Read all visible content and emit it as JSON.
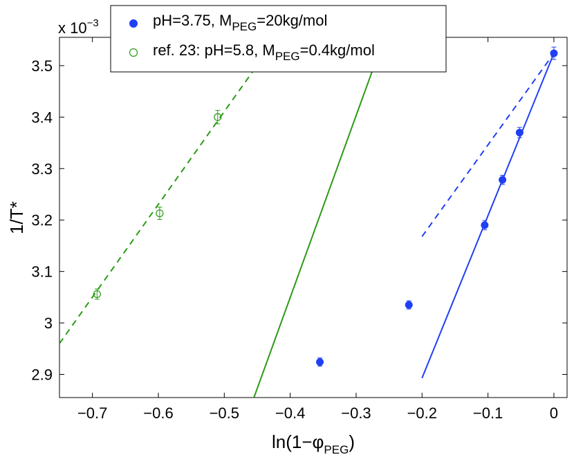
{
  "chart_data": {
    "type": "scatter",
    "title": "",
    "xlabel": {
      "main": "ln(1−φ",
      "sub": "PEG",
      "tail": ")"
    },
    "ylabel": "1/T*",
    "y_multiplier": {
      "base": "x 10",
      "exp": "−3"
    },
    "xlim": [
      -0.75,
      0.02
    ],
    "ylim": [
      2.855,
      3.555
    ],
    "x_ticks": [
      -0.7,
      -0.6,
      -0.5,
      -0.4,
      -0.3,
      -0.2,
      -0.1,
      0
    ],
    "x_tick_labels": [
      "−0.7",
      "−0.6",
      "−0.5",
      "−0.4",
      "−0.3",
      "−0.2",
      "−0.1",
      "0"
    ],
    "y_ticks": [
      2.9,
      3.0,
      3.1,
      3.2,
      3.3,
      3.4,
      3.5
    ],
    "y_tick_labels": [
      "2.9",
      "3",
      "3.1",
      "3.2",
      "3.3",
      "3.4",
      "3.5"
    ],
    "grid": false,
    "legend_position": "top-center",
    "colors": {
      "blue": "#1f3ff5",
      "green": "#2a9a14"
    },
    "series": [
      {
        "name": {
          "pre": "pH=3.75, M",
          "sub": "PEG",
          "post": "=20kg/mol"
        },
        "marker": "filled-circle",
        "color": "#1f3ff5",
        "x": [
          -0.355,
          -0.22,
          -0.105,
          -0.078,
          -0.052,
          0.0
        ],
        "y": [
          2.924,
          3.035,
          3.19,
          3.278,
          3.37,
          3.524
        ],
        "err": [
          0.008,
          0.008,
          0.009,
          0.009,
          0.01,
          0.012
        ]
      },
      {
        "name": {
          "pre": "ref. 23: pH=5.8, M",
          "sub": "PEG",
          "post": "=0.4kg/mol"
        },
        "marker": "open-circle",
        "color": "#2a9a14",
        "x": [
          -0.693,
          -0.598,
          -0.51
        ],
        "y": [
          3.056,
          3.213,
          3.4
        ],
        "err": [
          0.01,
          0.012,
          0.013
        ]
      }
    ],
    "lines": [
      {
        "name": "blue-solid-fit",
        "color": "#1f3ff5",
        "style": "solid",
        "x": [
          -0.2,
          0.0
        ],
        "y": [
          2.893,
          3.524
        ]
      },
      {
        "name": "blue-dashed-fit",
        "color": "#1f3ff5",
        "style": "dashed",
        "x": [
          -0.2,
          0.0
        ],
        "y": [
          3.168,
          3.524
        ]
      },
      {
        "name": "green-solid-fit",
        "color": "#2a9a14",
        "style": "solid",
        "x": [
          -0.455,
          -0.257
        ],
        "y": [
          2.855,
          3.555
        ]
      },
      {
        "name": "green-dashed-fit",
        "color": "#2a9a14",
        "style": "dashed",
        "x": [
          -0.75,
          -0.42
        ],
        "y": [
          2.96,
          3.555
        ]
      }
    ]
  }
}
